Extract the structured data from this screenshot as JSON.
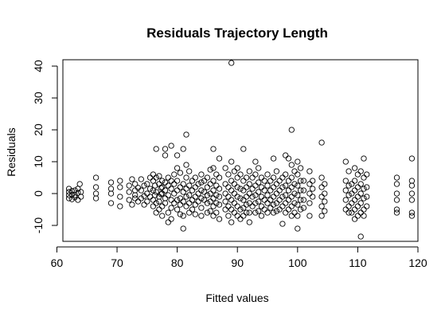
{
  "chart_data": {
    "type": "scatter",
    "title": "Residuals Trajectory Length",
    "xlabel": "Fitted values",
    "ylabel": "Residuals",
    "xlim": [
      61,
      120
    ],
    "ylim": [
      -15,
      42
    ],
    "x_ticks": [
      60,
      70,
      80,
      90,
      100,
      110,
      120
    ],
    "y_ticks": [
      -10,
      0,
      10,
      20,
      30,
      40
    ],
    "grid": false,
    "legend": "none",
    "marker": "open-circle",
    "marker_color": "#000000",
    "points": [
      [
        62,
        1.5
      ],
      [
        62,
        0.5
      ],
      [
        62,
        -0.5
      ],
      [
        62,
        -1.5
      ],
      [
        62.5,
        0.8
      ],
      [
        62.5,
        -0.4
      ],
      [
        62.5,
        -1.8
      ],
      [
        63,
        1
      ],
      [
        63,
        -0.5
      ],
      [
        63,
        -1.2
      ],
      [
        63.5,
        1.5
      ],
      [
        63.5,
        0.2
      ],
      [
        63.5,
        -2
      ],
      [
        63.8,
        3
      ],
      [
        64,
        0.5
      ],
      [
        64,
        -1
      ],
      [
        66.5,
        5
      ],
      [
        66.5,
        2
      ],
      [
        66.5,
        0
      ],
      [
        66.5,
        -1.5
      ],
      [
        69,
        3.5
      ],
      [
        69,
        1.5
      ],
      [
        69,
        0
      ],
      [
        69,
        -3
      ],
      [
        70.5,
        4
      ],
      [
        70.5,
        2
      ],
      [
        70.5,
        -1
      ],
      [
        70.5,
        -4
      ],
      [
        72,
        2.5
      ],
      [
        72,
        0.5
      ],
      [
        72,
        -2
      ],
      [
        72.5,
        4.5
      ],
      [
        72.5,
        -3.5
      ],
      [
        73,
        3
      ],
      [
        73,
        1
      ],
      [
        73,
        -0.5
      ],
      [
        73,
        -1.5
      ],
      [
        73.5,
        1.8
      ],
      [
        73.5,
        -2.5
      ],
      [
        74,
        4.5
      ],
      [
        74,
        1
      ],
      [
        74,
        -1.5
      ],
      [
        74.5,
        2.5
      ],
      [
        74.5,
        -0.8
      ],
      [
        74.5,
        -3.5
      ],
      [
        75,
        3
      ],
      [
        75,
        0
      ],
      [
        75,
        -2.5
      ],
      [
        75.5,
        5
      ],
      [
        75.5,
        1.5
      ],
      [
        75.5,
        -1
      ],
      [
        76,
        6
      ],
      [
        76,
        4
      ],
      [
        76,
        1
      ],
      [
        76,
        -2
      ],
      [
        76,
        -4
      ],
      [
        76.3,
        2.5
      ],
      [
        76.3,
        -0.5
      ],
      [
        76.5,
        14
      ],
      [
        76.5,
        5
      ],
      [
        76.5,
        0.5
      ],
      [
        76.5,
        -3
      ],
      [
        76.5,
        -6
      ],
      [
        77,
        5.5
      ],
      [
        77,
        3
      ],
      [
        77,
        -1
      ],
      [
        77,
        -2.5
      ],
      [
        77,
        -5
      ],
      [
        77.3,
        1.8
      ],
      [
        77.3,
        -0.2
      ],
      [
        77.5,
        4
      ],
      [
        77.5,
        2
      ],
      [
        77.5,
        0
      ],
      [
        77.5,
        -4
      ],
      [
        77.5,
        -7
      ],
      [
        78,
        14
      ],
      [
        78,
        12
      ],
      [
        78,
        3.5
      ],
      [
        78,
        1
      ],
      [
        78,
        -1.5
      ],
      [
        78,
        -3
      ],
      [
        78.5,
        5
      ],
      [
        78.5,
        2.5
      ],
      [
        78.5,
        -0.5
      ],
      [
        78.5,
        -6
      ],
      [
        78.5,
        -9
      ],
      [
        79,
        15
      ],
      [
        79,
        4
      ],
      [
        79,
        1.5
      ],
      [
        79,
        -2
      ],
      [
        79,
        -4.5
      ],
      [
        79,
        -8
      ],
      [
        79.5,
        6
      ],
      [
        79.5,
        3
      ],
      [
        79.5,
        0
      ],
      [
        79.5,
        -3
      ],
      [
        80,
        12
      ],
      [
        80,
        8
      ],
      [
        80,
        4
      ],
      [
        80,
        1
      ],
      [
        80,
        -2
      ],
      [
        80,
        -5
      ],
      [
        80.5,
        6.5
      ],
      [
        80.5,
        2
      ],
      [
        80.5,
        -1.5
      ],
      [
        80.5,
        -3.5
      ],
      [
        80.5,
        -6.5
      ],
      [
        81,
        14
      ],
      [
        81,
        3
      ],
      [
        81,
        0.5
      ],
      [
        81,
        -2.5
      ],
      [
        81,
        -7
      ],
      [
        81,
        -11
      ],
      [
        81.5,
        18.5
      ],
      [
        81.5,
        9
      ],
      [
        81.5,
        5
      ],
      [
        81.5,
        1.5
      ],
      [
        81.5,
        -1
      ],
      [
        81.5,
        -4
      ],
      [
        82,
        7
      ],
      [
        82,
        2.5
      ],
      [
        82,
        -0.5
      ],
      [
        82,
        -3
      ],
      [
        82,
        -6
      ],
      [
        82.5,
        4
      ],
      [
        82.5,
        1
      ],
      [
        82.5,
        -2
      ],
      [
        82.5,
        -5
      ],
      [
        83,
        5
      ],
      [
        83,
        2
      ],
      [
        83,
        -1
      ],
      [
        83,
        -3.5
      ],
      [
        83,
        -6.5
      ],
      [
        83.5,
        3
      ],
      [
        83.5,
        0
      ],
      [
        83.5,
        -2.5
      ],
      [
        84,
        6
      ],
      [
        84,
        3.5
      ],
      [
        84,
        1
      ],
      [
        84,
        -1.5
      ],
      [
        84,
        -4.5
      ],
      [
        84,
        -7
      ],
      [
        84.5,
        4
      ],
      [
        84.5,
        0.5
      ],
      [
        84.5,
        -2
      ],
      [
        85,
        5
      ],
      [
        85,
        2
      ],
      [
        85,
        -0.5
      ],
      [
        85,
        -3
      ],
      [
        85,
        -6
      ],
      [
        85.5,
        7.5
      ],
      [
        85.5,
        3
      ],
      [
        85.5,
        0
      ],
      [
        85.5,
        -2.5
      ],
      [
        85.5,
        -5.5
      ],
      [
        86,
        14
      ],
      [
        86,
        8
      ],
      [
        86,
        4
      ],
      [
        86,
        1
      ],
      [
        86,
        -1.5
      ],
      [
        86,
        -4
      ],
      [
        86,
        -7
      ],
      [
        86.5,
        6
      ],
      [
        86.5,
        2.5
      ],
      [
        86.5,
        -0.5
      ],
      [
        86.5,
        -3
      ],
      [
        86.5,
        -6
      ],
      [
        87,
        11
      ],
      [
        87,
        5
      ],
      [
        87,
        1.5
      ],
      [
        87,
        -1
      ],
      [
        87,
        -3.5
      ],
      [
        87,
        -8
      ],
      [
        88,
        8
      ],
      [
        88,
        3
      ],
      [
        88,
        0
      ],
      [
        88,
        -2.5
      ],
      [
        88,
        -5
      ],
      [
        88.5,
        6
      ],
      [
        88.5,
        2
      ],
      [
        88.5,
        -1
      ],
      [
        88.5,
        -4
      ],
      [
        88.5,
        -7
      ],
      [
        89,
        41
      ],
      [
        89,
        10
      ],
      [
        89,
        4
      ],
      [
        89,
        1
      ],
      [
        89,
        -2
      ],
      [
        89,
        -5
      ],
      [
        89,
        -9
      ],
      [
        89.5,
        7
      ],
      [
        89.5,
        3
      ],
      [
        89.5,
        0
      ],
      [
        89.5,
        -3
      ],
      [
        89.5,
        -6
      ],
      [
        90,
        8
      ],
      [
        90,
        5
      ],
      [
        90,
        2
      ],
      [
        90,
        -1
      ],
      [
        90,
        -4
      ],
      [
        90,
        -7
      ],
      [
        90.5,
        6
      ],
      [
        90.5,
        1.5
      ],
      [
        90.5,
        -1.5
      ],
      [
        90.5,
        -5
      ],
      [
        90.5,
        -8
      ],
      [
        91,
        14
      ],
      [
        91,
        4
      ],
      [
        91,
        1
      ],
      [
        91,
        -2
      ],
      [
        91,
        -4.5
      ],
      [
        91,
        -7
      ],
      [
        91.5,
        5
      ],
      [
        91.5,
        2
      ],
      [
        91.5,
        -1
      ],
      [
        91.5,
        -3.5
      ],
      [
        91.5,
        -6
      ],
      [
        92,
        7
      ],
      [
        92,
        3
      ],
      [
        92,
        0
      ],
      [
        92,
        -3
      ],
      [
        92,
        -6
      ],
      [
        92,
        -9
      ],
      [
        92.5,
        5
      ],
      [
        92.5,
        1.5
      ],
      [
        92.5,
        -1
      ],
      [
        92.5,
        -4
      ],
      [
        93,
        10
      ],
      [
        93,
        6
      ],
      [
        93,
        2.5
      ],
      [
        93,
        -0.5
      ],
      [
        93,
        -3
      ],
      [
        93,
        -6
      ],
      [
        93.5,
        8
      ],
      [
        93.5,
        3.5
      ],
      [
        93.5,
        0.5
      ],
      [
        93.5,
        -2.5
      ],
      [
        93.5,
        -5.5
      ],
      [
        94,
        5
      ],
      [
        94,
        2
      ],
      [
        94,
        -1
      ],
      [
        94,
        -4
      ],
      [
        94,
        -7
      ],
      [
        94.5,
        4
      ],
      [
        94.5,
        1
      ],
      [
        94.5,
        -2
      ],
      [
        94.5,
        -5
      ],
      [
        95,
        6
      ],
      [
        95,
        2.5
      ],
      [
        95,
        -0.5
      ],
      [
        95,
        -3
      ],
      [
        95,
        -6
      ],
      [
        95.5,
        4
      ],
      [
        95.5,
        1
      ],
      [
        95.5,
        -2
      ],
      [
        95.5,
        -4.5
      ],
      [
        96,
        11
      ],
      [
        96,
        5
      ],
      [
        96,
        2
      ],
      [
        96,
        -1
      ],
      [
        96,
        -3.5
      ],
      [
        96,
        -6
      ],
      [
        96.5,
        7
      ],
      [
        96.5,
        3
      ],
      [
        96.5,
        0
      ],
      [
        96.5,
        -3
      ],
      [
        96.5,
        -5.5
      ],
      [
        97,
        4
      ],
      [
        97,
        1
      ],
      [
        97,
        -2
      ],
      [
        97,
        -5
      ],
      [
        97.5,
        5
      ],
      [
        97.5,
        2
      ],
      [
        97.5,
        -1
      ],
      [
        97.5,
        -4
      ],
      [
        97.5,
        -9.5
      ],
      [
        98,
        12
      ],
      [
        98,
        6
      ],
      [
        98,
        2.5
      ],
      [
        98,
        -0.5
      ],
      [
        98,
        -3
      ],
      [
        98,
        -6
      ],
      [
        98.5,
        11
      ],
      [
        98.5,
        4
      ],
      [
        98.5,
        1
      ],
      [
        98.5,
        -2
      ],
      [
        98.5,
        -5
      ],
      [
        99,
        20
      ],
      [
        99,
        9
      ],
      [
        99,
        5
      ],
      [
        99,
        2
      ],
      [
        99,
        -1
      ],
      [
        99,
        -4
      ],
      [
        99,
        -7
      ],
      [
        99.5,
        7
      ],
      [
        99.5,
        3
      ],
      [
        99.5,
        0
      ],
      [
        99.5,
        -3
      ],
      [
        99.5,
        -6
      ],
      [
        100,
        10
      ],
      [
        100,
        6
      ],
      [
        100,
        2.5
      ],
      [
        100,
        -0.5
      ],
      [
        100,
        -3.5
      ],
      [
        100,
        -7
      ],
      [
        100,
        -11
      ],
      [
        100.5,
        8
      ],
      [
        100.5,
        4
      ],
      [
        100.5,
        1
      ],
      [
        100.5,
        -2
      ],
      [
        100.5,
        -5
      ],
      [
        101,
        4
      ],
      [
        101,
        1
      ],
      [
        101,
        -2
      ],
      [
        101,
        -4.5
      ],
      [
        102,
        7
      ],
      [
        102,
        3
      ],
      [
        102,
        0
      ],
      [
        102,
        -3
      ],
      [
        102,
        -7
      ],
      [
        102.5,
        4
      ],
      [
        102.5,
        1.5
      ],
      [
        102.5,
        -1
      ],
      [
        104,
        16
      ],
      [
        104,
        5
      ],
      [
        104,
        2
      ],
      [
        104,
        -1
      ],
      [
        104,
        -4
      ],
      [
        104,
        -7
      ],
      [
        104.5,
        3
      ],
      [
        104.5,
        0
      ],
      [
        104.5,
        -2.5
      ],
      [
        104.5,
        -5.5
      ],
      [
        108,
        10
      ],
      [
        108,
        4
      ],
      [
        108,
        1
      ],
      [
        108,
        -2
      ],
      [
        108,
        -5
      ],
      [
        108.5,
        7
      ],
      [
        108.5,
        2.5
      ],
      [
        108.5,
        -0.5
      ],
      [
        108.5,
        -4
      ],
      [
        108.5,
        -6
      ],
      [
        109,
        3
      ],
      [
        109,
        0
      ],
      [
        109,
        -3
      ],
      [
        109,
        -6
      ],
      [
        109.5,
        8
      ],
      [
        109.5,
        4
      ],
      [
        109.5,
        1
      ],
      [
        109.5,
        -2
      ],
      [
        109.5,
        -5
      ],
      [
        109.5,
        -8
      ],
      [
        110,
        6
      ],
      [
        110,
        2
      ],
      [
        110,
        -1
      ],
      [
        110,
        -4
      ],
      [
        110,
        -7
      ],
      [
        110.5,
        7
      ],
      [
        110.5,
        3
      ],
      [
        110.5,
        0
      ],
      [
        110.5,
        -3
      ],
      [
        110.5,
        -6
      ],
      [
        110.5,
        -13.5
      ],
      [
        111,
        11
      ],
      [
        111,
        5
      ],
      [
        111,
        1.5
      ],
      [
        111,
        -1.5
      ],
      [
        111,
        -5
      ],
      [
        111,
        -7
      ],
      [
        111.5,
        6
      ],
      [
        111.5,
        2
      ],
      [
        111.5,
        -1
      ],
      [
        111.5,
        -4
      ],
      [
        116.5,
        5
      ],
      [
        116.5,
        3
      ],
      [
        116.5,
        0
      ],
      [
        116.5,
        -2
      ],
      [
        116.5,
        -5
      ],
      [
        116.5,
        -6
      ],
      [
        119,
        11
      ],
      [
        119,
        4
      ],
      [
        119,
        2.5
      ],
      [
        119,
        0
      ],
      [
        119,
        -2
      ],
      [
        119,
        -6
      ],
      [
        119,
        -7
      ]
    ]
  }
}
